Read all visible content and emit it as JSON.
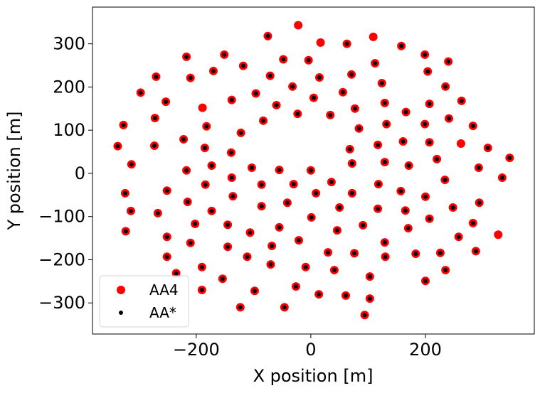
{
  "chart_data": {
    "type": "scatter",
    "xlabel": "X position [m]",
    "ylabel": "Y position [m]",
    "xlim": [
      -381,
      390
    ],
    "ylim": [
      -372,
      385
    ],
    "xticks": [
      {
        "value": -200,
        "label": "−200"
      },
      0,
      200
    ],
    "yticks": [
      {
        "value": -300,
        "label": "−300"
      },
      {
        "value": -200,
        "label": "−200"
      },
      {
        "value": -100,
        "label": "−100"
      },
      0,
      100,
      200,
      300
    ],
    "grid": false,
    "legend": "lower left",
    "series": [
      {
        "name": "AA4",
        "color": "#ff0000",
        "size": 6,
        "x": [
          -22,
          -75,
          17,
          109,
          63,
          158,
          -217,
          -151,
          -48,
          -4,
          112,
          199,
          240,
          -118,
          -170,
          -270,
          -210,
          -71,
          15,
          71,
          204,
          -32,
          -297,
          -253,
          -138,
          -96,
          5,
          56,
          124,
          235,
          -189,
          -60,
          -23,
          34,
          77,
          129,
          166,
          207,
          263,
          -272,
          -327,
          -182,
          -122,
          -83,
          84,
          132,
          199,
          241,
          283,
          -222,
          -337,
          -273,
          -185,
          -139,
          68,
          117,
          161,
          207,
          262,
          309,
          -313,
          -217,
          -173,
          -103,
          -55,
          0,
          72,
          129,
          171,
          220,
          293,
          347,
          -138,
          -30,
          36,
          118,
          234,
          334,
          -324,
          -251,
          -184,
          -136,
          -86,
          9,
          72,
          157,
          200,
          294,
          -314,
          -267,
          -215,
          -173,
          -86,
          -41,
          50,
          117,
          165,
          248,
          1,
          207,
          -202,
          -145,
          91,
          170,
          283,
          -323,
          -251,
          -106,
          -55,
          46,
          -21,
          129,
          258,
          327,
          -210,
          -145,
          -68,
          30,
          76,
          130,
          183,
          226,
          288,
          -251,
          -111,
          -70,
          -9,
          41,
          235,
          -235,
          -190,
          103,
          -154,
          200,
          -190,
          -26,
          -98,
          14,
          61,
          103,
          -123,
          -46,
          94
        ],
        "y": [
          343,
          318,
          303,
          316,
          300,
          295,
          270,
          275,
          264,
          262,
          255,
          275,
          259,
          249,
          237,
          224,
          221,
          226,
          222,
          229,
          236,
          201,
          187,
          166,
          170,
          185,
          175,
          188,
          209,
          201,
          152,
          158,
          138,
          135,
          150,
          163,
          142,
          161,
          168,
          128,
          112,
          109,
          94,
          122,
          104,
          114,
          114,
          127,
          110,
          79,
          63,
          64,
          59,
          48,
          56,
          66,
          74,
          72,
          69,
          59,
          21,
          7,
          18,
          13,
          8,
          7,
          23,
          26,
          18,
          33,
          13,
          36,
          -10,
          -25,
          -20,
          -25,
          -15,
          -10,
          -46,
          -40,
          -26,
          -53,
          -26,
          -46,
          -46,
          -41,
          -54,
          -68,
          -87,
          -92,
          -66,
          -87,
          -76,
          -68,
          -79,
          -82,
          -86,
          -79,
          -102,
          -105,
          -117,
          -119,
          -120,
          -127,
          -115,
          -134,
          -147,
          -137,
          -125,
          -132,
          -155,
          -160,
          -147,
          -142,
          -161,
          -170,
          -168,
          -183,
          -185,
          -193,
          -186,
          -184,
          -180,
          -193,
          -193,
          -211,
          -217,
          -224,
          -224,
          -231,
          -217,
          -239,
          -244,
          -249,
          -270,
          -262,
          -272,
          -280,
          -283,
          -290,
          -310,
          -310,
          -328
        ]
      },
      {
        "name": "AA*",
        "color": "#000000",
        "size": 3,
        "x": [
          -75,
          63,
          158,
          -217,
          -151,
          -48,
          -4,
          112,
          199,
          240,
          -118,
          -170,
          -270,
          -210,
          -71,
          15,
          71,
          204,
          -32,
          -297,
          -253,
          -138,
          -96,
          5,
          56,
          124,
          235,
          -60,
          -23,
          34,
          77,
          129,
          166,
          207,
          263,
          -272,
          -327,
          -182,
          -122,
          -83,
          84,
          132,
          199,
          241,
          283,
          -222,
          -337,
          -273,
          -185,
          -139,
          68,
          117,
          161,
          207,
          309,
          -313,
          -217,
          -173,
          -103,
          -55,
          0,
          72,
          129,
          171,
          220,
          293,
          347,
          -138,
          -30,
          36,
          118,
          234,
          334,
          -324,
          -251,
          -184,
          -136,
          -86,
          9,
          72,
          157,
          200,
          294,
          -314,
          -267,
          -215,
          -173,
          -86,
          -41,
          50,
          117,
          165,
          248,
          1,
          207,
          -202,
          -145,
          91,
          170,
          283,
          -323,
          -251,
          -106,
          -55,
          46,
          -21,
          129,
          258,
          -210,
          -145,
          -68,
          30,
          76,
          130,
          183,
          226,
          288,
          -251,
          -111,
          -70,
          -9,
          41,
          235,
          -235,
          -190,
          103,
          -154,
          200,
          -190,
          -26,
          -98,
          14,
          61,
          103,
          -123,
          -46,
          94
        ],
        "y": [
          318,
          300,
          295,
          270,
          275,
          264,
          262,
          255,
          275,
          259,
          249,
          237,
          224,
          221,
          226,
          222,
          229,
          236,
          201,
          187,
          166,
          170,
          185,
          175,
          188,
          209,
          201,
          158,
          138,
          135,
          150,
          163,
          142,
          161,
          168,
          128,
          112,
          109,
          94,
          122,
          104,
          114,
          114,
          127,
          110,
          79,
          63,
          64,
          59,
          48,
          56,
          66,
          74,
          72,
          59,
          21,
          7,
          18,
          13,
          8,
          7,
          23,
          26,
          18,
          33,
          13,
          36,
          -10,
          -25,
          -20,
          -25,
          -15,
          -10,
          -46,
          -40,
          -26,
          -53,
          -26,
          -46,
          -46,
          -41,
          -54,
          -68,
          -87,
          -92,
          -66,
          -87,
          -76,
          -68,
          -79,
          -82,
          -86,
          -79,
          -102,
          -105,
          -117,
          -119,
          -120,
          -127,
          -115,
          -134,
          -147,
          -137,
          -125,
          -132,
          -155,
          -160,
          -147,
          -161,
          -170,
          -168,
          -183,
          -185,
          -193,
          -186,
          -184,
          -180,
          -193,
          -193,
          -211,
          -217,
          -224,
          -224,
          -231,
          -217,
          -239,
          -244,
          -249,
          -270,
          -262,
          -272,
          -280,
          -283,
          -290,
          -310,
          -310,
          -328
        ]
      }
    ]
  }
}
